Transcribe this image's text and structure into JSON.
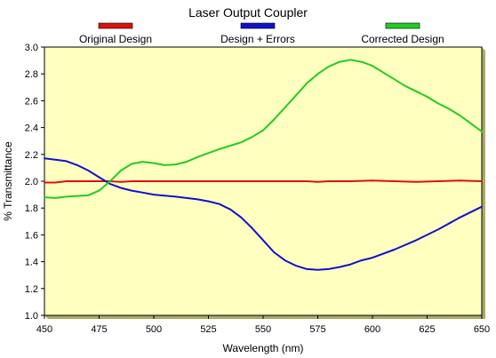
{
  "chart_data": {
    "type": "line",
    "title": "Laser Output Coupler",
    "xlabel": "Wavelength (nm)",
    "ylabel": "% Transmittance",
    "xlim": [
      450,
      650
    ],
    "ylim": [
      1.0,
      3.0
    ],
    "x_ticks": [
      450,
      475,
      500,
      525,
      550,
      575,
      600,
      625,
      650
    ],
    "y_ticks": [
      1.0,
      1.2,
      1.4,
      1.6,
      1.8,
      2.0,
      2.2,
      2.4,
      2.6,
      2.8,
      3.0
    ],
    "x_tick_labels": [
      "450",
      "475",
      "500",
      "525",
      "550",
      "575",
      "600",
      "625",
      "650"
    ],
    "y_tick_labels": [
      "1.0",
      "1.2",
      "1.4",
      "1.6",
      "1.8",
      "2.0",
      "2.2",
      "2.4",
      "2.6",
      "2.8",
      "3.0"
    ],
    "plot_background": "#ffffc0",
    "grid": false,
    "legend_position": "top",
    "series": [
      {
        "name": "Original Design",
        "color": "#dd1111",
        "x": [
          450,
          455,
          460,
          465,
          470,
          475,
          480,
          485,
          490,
          500,
          510,
          520,
          530,
          540,
          550,
          560,
          570,
          575,
          580,
          590,
          600,
          610,
          620,
          630,
          640,
          650
        ],
        "y": [
          1.99,
          1.99,
          2.0,
          2.0,
          2.0,
          2.0,
          2.0,
          1.995,
          2.0,
          2.0,
          2.0,
          2.0,
          2.0,
          2.0,
          2.0,
          2.0,
          2.0,
          1.995,
          2.0,
          2.0,
          2.005,
          2.0,
          1.995,
          2.0,
          2.005,
          2.0
        ]
      },
      {
        "name": "Design + Errors",
        "color": "#1111cc",
        "x": [
          450,
          455,
          460,
          465,
          470,
          475,
          480,
          485,
          490,
          495,
          500,
          510,
          520,
          525,
          530,
          535,
          540,
          545,
          550,
          555,
          560,
          565,
          570,
          575,
          580,
          585,
          590,
          595,
          600,
          610,
          620,
          630,
          640,
          650
        ],
        "y": [
          2.17,
          2.16,
          2.15,
          2.12,
          2.08,
          2.03,
          1.98,
          1.95,
          1.93,
          1.915,
          1.9,
          1.885,
          1.865,
          1.85,
          1.83,
          1.79,
          1.73,
          1.65,
          1.56,
          1.47,
          1.41,
          1.37,
          1.345,
          1.34,
          1.345,
          1.36,
          1.38,
          1.41,
          1.43,
          1.49,
          1.56,
          1.64,
          1.73,
          1.81
        ]
      },
      {
        "name": "Corrected Design",
        "color": "#22cc22",
        "x": [
          450,
          455,
          460,
          465,
          470,
          475,
          480,
          485,
          490,
          495,
          500,
          505,
          510,
          515,
          520,
          525,
          530,
          535,
          540,
          545,
          550,
          555,
          560,
          565,
          570,
          575,
          580,
          585,
          590,
          595,
          600,
          605,
          610,
          615,
          620,
          625,
          630,
          635,
          640,
          645,
          650
        ],
        "y": [
          1.88,
          1.875,
          1.885,
          1.89,
          1.895,
          1.93,
          2.0,
          2.08,
          2.13,
          2.145,
          2.135,
          2.12,
          2.125,
          2.145,
          2.18,
          2.21,
          2.24,
          2.265,
          2.29,
          2.33,
          2.38,
          2.46,
          2.55,
          2.64,
          2.73,
          2.8,
          2.855,
          2.89,
          2.905,
          2.89,
          2.86,
          2.81,
          2.76,
          2.71,
          2.67,
          2.63,
          2.58,
          2.54,
          2.49,
          2.43,
          2.37
        ]
      }
    ]
  }
}
